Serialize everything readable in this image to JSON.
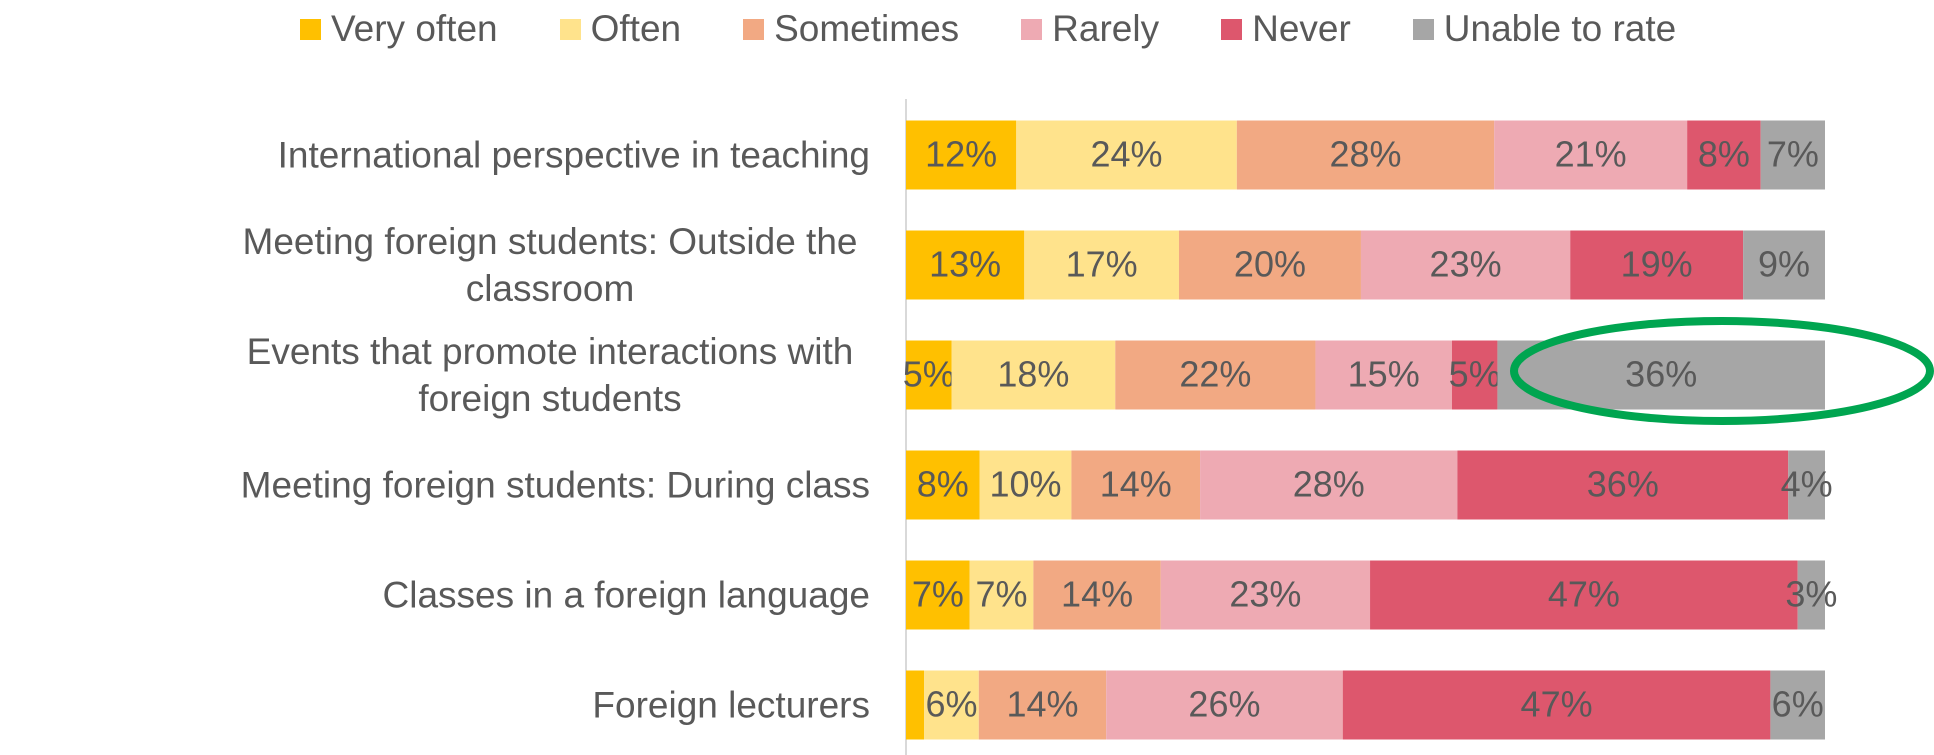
{
  "chart_data": {
    "type": "stacked-bar-100",
    "categories": [
      "International perspective in teaching",
      "Meeting foreign students: Outside the classroom",
      "Events that promote interactions with foreign students",
      "Meeting foreign students: During class",
      "Classes in a foreign language",
      "Foreign lecturers"
    ],
    "series": [
      {
        "name": "Very often",
        "color": "#ffc000",
        "values": [
          12,
          13,
          5,
          8,
          7,
          2
        ],
        "value_labels": [
          "12%",
          "13%",
          "5%",
          "8%",
          "7%",
          null
        ]
      },
      {
        "name": "Often",
        "color": "#ffe38c",
        "values": [
          24,
          17,
          18,
          10,
          7,
          6
        ],
        "value_labels": [
          "24%",
          "17%",
          "18%",
          "10%",
          "7%",
          "6%"
        ]
      },
      {
        "name": "Sometimes",
        "color": "#f2a983",
        "values": [
          28,
          20,
          22,
          14,
          14,
          14
        ],
        "value_labels": [
          "28%",
          "20%",
          "22%",
          "14%",
          "14%",
          "14%"
        ]
      },
      {
        "name": "Rarely",
        "color": "#eeaab3",
        "values": [
          21,
          23,
          15,
          28,
          23,
          26
        ],
        "value_labels": [
          "21%",
          "23%",
          "15%",
          "28%",
          "23%",
          "26%"
        ]
      },
      {
        "name": "Never",
        "color": "#dd576d",
        "values": [
          8,
          19,
          5,
          36,
          47,
          47
        ],
        "value_labels": [
          "8%",
          "19%",
          "5%",
          "36%",
          "47%",
          "47%"
        ]
      },
      {
        "name": "Unable to rate",
        "color": "#a6a6a6",
        "values": [
          7,
          9,
          36,
          4,
          3,
          6
        ],
        "value_labels": [
          "7%",
          "9%",
          "36%",
          "4%",
          "3%",
          "6%"
        ]
      }
    ],
    "legend": "top"
  }
}
